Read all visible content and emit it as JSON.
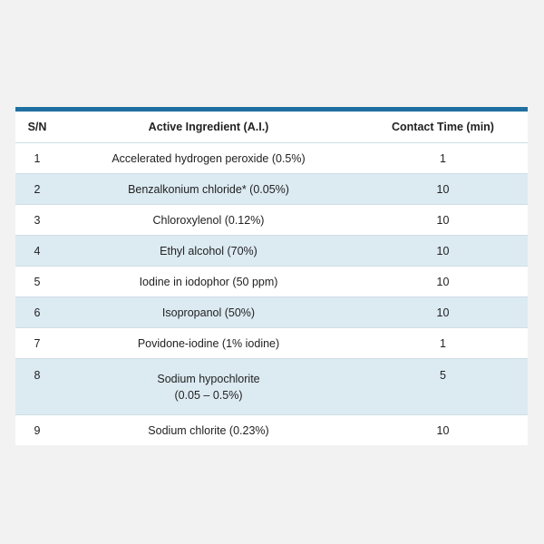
{
  "table": {
    "headers": {
      "sn": "S/N",
      "ingredient": "Active Ingredient (A.I.)",
      "contact_time": "Contact Time (min)"
    },
    "rows": [
      {
        "sn": "1",
        "ingredient": "Accelerated hydrogen peroxide (0.5%)",
        "ingredient_line2": "",
        "contact_time": "1"
      },
      {
        "sn": "2",
        "ingredient": "Benzalkonium chloride* (0.05%)",
        "ingredient_line2": "",
        "contact_time": "10"
      },
      {
        "sn": "3",
        "ingredient": "Chloroxylenol (0.12%)",
        "ingredient_line2": "",
        "contact_time": "10"
      },
      {
        "sn": "4",
        "ingredient": "Ethyl alcohol (70%)",
        "ingredient_line2": "",
        "contact_time": "10"
      },
      {
        "sn": "5",
        "ingredient": "Iodine in iodophor (50 ppm)",
        "ingredient_line2": "",
        "contact_time": "10"
      },
      {
        "sn": "6",
        "ingredient": "Isopropanol (50%)",
        "ingredient_line2": "",
        "contact_time": "10"
      },
      {
        "sn": "7",
        "ingredient": "Povidone-iodine (1% iodine)",
        "ingredient_line2": "",
        "contact_time": "1"
      },
      {
        "sn": "8",
        "ingredient": "Sodium hypochlorite",
        "ingredient_line2": "(0.05 – 0.5%)",
        "contact_time": "5"
      },
      {
        "sn": "9",
        "ingredient": "Sodium chlorite (0.23%)",
        "ingredient_line2": "",
        "contact_time": "10"
      }
    ]
  },
  "colors": {
    "header_rule": "#1f6fa1",
    "alt_row": "#dceaf2",
    "page_background": "#f2f2f2"
  }
}
